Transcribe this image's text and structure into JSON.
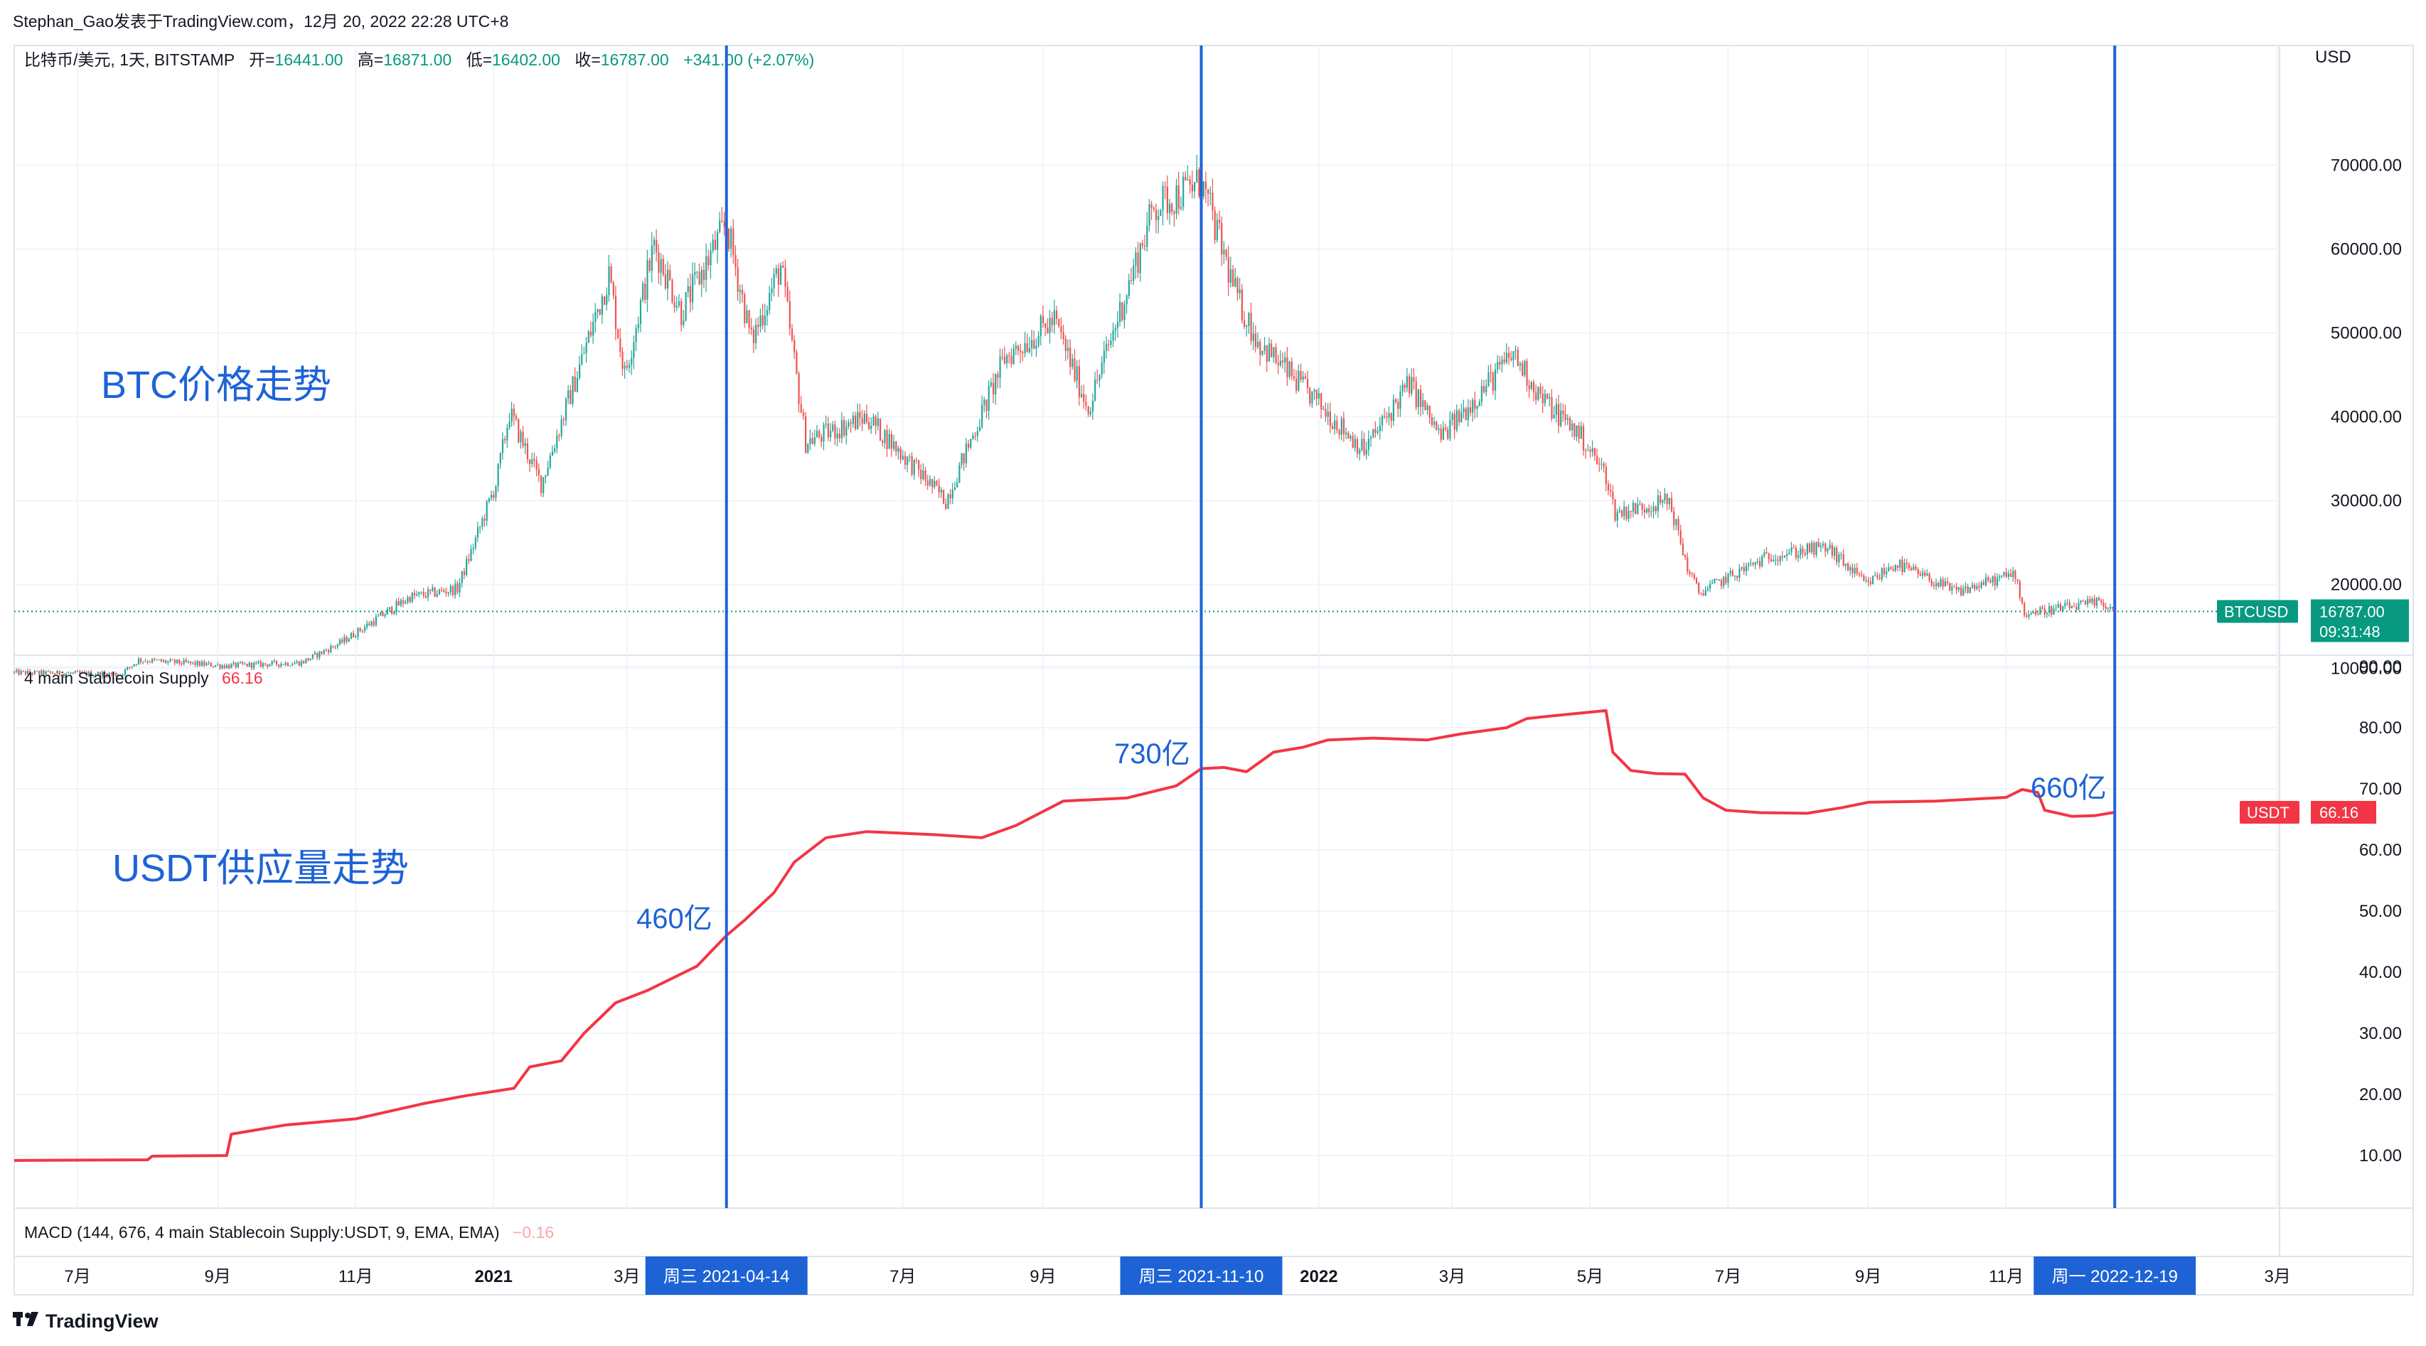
{
  "publish_header": "Stephan_Gao发表于TradingView.com，12月 20, 2022 22:28 UTC+8",
  "symbol": {
    "name": "比特币/美元, 1天, BITSTAMP",
    "open_label": "开=",
    "open": "16441.00",
    "high_label": "高=",
    "high": "16871.00",
    "low_label": "低=",
    "low": "16402.00",
    "close_label": "收=",
    "close": "16787.00",
    "change": "+341.00 (+2.07%)"
  },
  "currency_label": "USD",
  "annotations": {
    "btc_title": "BTC价格走势",
    "usdt_title": "USDT供应量走势",
    "label_460": "460亿",
    "label_730": "730亿",
    "label_660": "660亿"
  },
  "price_tag": {
    "symbol": "BTCUSD",
    "price": "16787.00",
    "countdown": "09:31:48"
  },
  "indicator": {
    "name": "4 main Stablecoin Supply",
    "value": "66.16",
    "tag_symbol": "USDT",
    "tag_value": "66.16"
  },
  "macd": {
    "name": "MACD (144, 676, 4 main Stablecoin Supply:USDT, 9, EMA, EMA)",
    "value": "−0.16"
  },
  "date_tags": [
    "周三 2021-04-14",
    "周三 2021-11-10",
    "周一 2022-12-19"
  ],
  "footer_brand": "TradingView",
  "colors": {
    "up": "#26a69a",
    "down": "#ef5350",
    "usdt_line": "#f23645",
    "marker": "#1e63d6",
    "annotation_text": "#1e63d6",
    "grid": "#f0f3fa"
  },
  "chart_data": [
    {
      "type": "candlestick",
      "title": "比特币/美元, 1天, BITSTAMP",
      "ylabel": "USD",
      "y_ticks": [
        10000,
        20000,
        30000,
        40000,
        50000,
        60000,
        70000
      ],
      "y_tick_labels": [
        "10000.00",
        "20000.00",
        "30000.00",
        "40000.00",
        "50000.00",
        "60000.00",
        "70000.00"
      ],
      "last_price": 16787,
      "x_tick_labels": [
        "7月",
        "9月",
        "11月",
        "2021",
        "3月",
        "7月",
        "9月",
        "2022",
        "3月",
        "5月",
        "7月",
        "9月",
        "11月",
        "3月"
      ],
      "x_ticks_dates": [
        "2020-07-01",
        "2020-09-01",
        "2020-11-01",
        "2021-01-01",
        "2021-03-01",
        "2021-07-01",
        "2021-09-01",
        "2022-01-01",
        "2022-03-01",
        "2022-05-01",
        "2022-07-01",
        "2022-09-01",
        "2022-11-01",
        "2023-03-01"
      ],
      "x_range": [
        "2020-06-03",
        "2023-04-30"
      ],
      "trend_points": [
        [
          "2020-06-03",
          9500
        ],
        [
          "2020-07-20",
          9300
        ],
        [
          "2020-07-28",
          11000
        ],
        [
          "2020-09-05",
          10300
        ],
        [
          "2020-10-08",
          10700
        ],
        [
          "2020-10-25",
          13000
        ],
        [
          "2020-11-25",
          18500
        ],
        [
          "2020-12-16",
          19500
        ],
        [
          "2021-01-02",
          32000
        ],
        [
          "2021-01-08",
          40500
        ],
        [
          "2021-01-22",
          32000
        ],
        [
          "2021-02-08",
          46000
        ],
        [
          "2021-02-21",
          57000
        ],
        [
          "2021-02-28",
          45000
        ],
        [
          "2021-03-13",
          60500
        ],
        [
          "2021-03-25",
          52500
        ],
        [
          "2021-04-14",
          63000
        ],
        [
          "2021-04-25",
          49000
        ],
        [
          "2021-05-08",
          58000
        ],
        [
          "2021-05-19",
          37000
        ],
        [
          "2021-06-15",
          40000
        ],
        [
          "2021-07-20",
          30000
        ],
        [
          "2021-08-15",
          47000
        ],
        [
          "2021-09-06",
          51500
        ],
        [
          "2021-09-21",
          41000
        ],
        [
          "2021-10-20",
          65000
        ],
        [
          "2021-11-10",
          68000
        ],
        [
          "2021-11-26",
          54000
        ],
        [
          "2021-12-05",
          49000
        ],
        [
          "2022-01-21",
          36000
        ],
        [
          "2022-02-10",
          44000
        ],
        [
          "2022-02-24",
          37500
        ],
        [
          "2022-03-28",
          47500
        ],
        [
          "2022-04-10",
          42000
        ],
        [
          "2022-04-26",
          38000
        ],
        [
          "2022-05-08",
          33000
        ],
        [
          "2022-05-12",
          28500
        ],
        [
          "2022-06-05",
          30000
        ],
        [
          "2022-06-13",
          22000
        ],
        [
          "2022-06-18",
          19000
        ],
        [
          "2022-07-20",
          23500
        ],
        [
          "2022-08-14",
          24400
        ],
        [
          "2022-08-31",
          20000
        ],
        [
          "2022-09-13",
          22500
        ],
        [
          "2022-10-10",
          19100
        ],
        [
          "2022-11-05",
          21300
        ],
        [
          "2022-11-09",
          16500
        ],
        [
          "2022-12-13",
          17900
        ],
        [
          "2022-12-19",
          16787
        ]
      ]
    },
    {
      "type": "line",
      "title": "4 main Stablecoin Supply",
      "series_name": "USDT",
      "y_ticks": [
        10,
        20,
        30,
        40,
        50,
        60,
        70,
        80,
        90
      ],
      "y_tick_labels": [
        "10.00",
        "20.00",
        "30.00",
        "40.00",
        "50.00",
        "60.00",
        "70.00",
        "80.00",
        "90.00"
      ],
      "last_value": 66.16,
      "points": [
        [
          "2020-06-03",
          9.2
        ],
        [
          "2020-08-01",
          9.3
        ],
        [
          "2020-08-03",
          9.9
        ],
        [
          "2020-09-05",
          10.0
        ],
        [
          "2020-09-07",
          13.5
        ],
        [
          "2020-10-01",
          15.0
        ],
        [
          "2020-11-01",
          16.0
        ],
        [
          "2020-12-01",
          18.5
        ],
        [
          "2020-12-20",
          19.8
        ],
        [
          "2021-01-10",
          21.0
        ],
        [
          "2021-01-17",
          24.5
        ],
        [
          "2021-01-31",
          25.5
        ],
        [
          "2021-02-10",
          30.0
        ],
        [
          "2021-02-24",
          35.0
        ],
        [
          "2021-03-10",
          37.0
        ],
        [
          "2021-04-01",
          41.0
        ],
        [
          "2021-04-14",
          46.0
        ],
        [
          "2021-04-22",
          48.5
        ],
        [
          "2021-05-05",
          53.0
        ],
        [
          "2021-05-14",
          58.0
        ],
        [
          "2021-05-28",
          62.0
        ],
        [
          "2021-06-15",
          63.0
        ],
        [
          "2021-07-15",
          62.5
        ],
        [
          "2021-08-05",
          62.0
        ],
        [
          "2021-08-20",
          64.0
        ],
        [
          "2021-09-10",
          68.0
        ],
        [
          "2021-10-08",
          68.5
        ],
        [
          "2021-10-30",
          70.5
        ],
        [
          "2021-11-10",
          73.3
        ],
        [
          "2021-11-20",
          73.5
        ],
        [
          "2021-11-30",
          72.8
        ],
        [
          "2021-12-12",
          76.0
        ],
        [
          "2021-12-25",
          76.8
        ],
        [
          "2022-01-05",
          78.0
        ],
        [
          "2022-01-25",
          78.3
        ],
        [
          "2022-02-18",
          78.0
        ],
        [
          "2022-03-05",
          79.0
        ],
        [
          "2022-03-25",
          80.0
        ],
        [
          "2022-04-03",
          81.5
        ],
        [
          "2022-04-16",
          82.0
        ],
        [
          "2022-05-08",
          82.8
        ],
        [
          "2022-05-11",
          76.0
        ],
        [
          "2022-05-19",
          73.0
        ],
        [
          "2022-05-30",
          72.5
        ],
        [
          "2022-06-12",
          72.4
        ],
        [
          "2022-06-20",
          68.5
        ],
        [
          "2022-06-30",
          66.5
        ],
        [
          "2022-07-15",
          66.1
        ],
        [
          "2022-08-05",
          66.0
        ],
        [
          "2022-08-20",
          66.9
        ],
        [
          "2022-09-01",
          67.8
        ],
        [
          "2022-10-01",
          68.0
        ],
        [
          "2022-11-01",
          68.6
        ],
        [
          "2022-11-08",
          69.9
        ],
        [
          "2022-11-15",
          69.4
        ],
        [
          "2022-11-18",
          66.5
        ],
        [
          "2022-11-30",
          65.5
        ],
        [
          "2022-12-10",
          65.6
        ],
        [
          "2022-12-19",
          66.16
        ]
      ]
    }
  ]
}
